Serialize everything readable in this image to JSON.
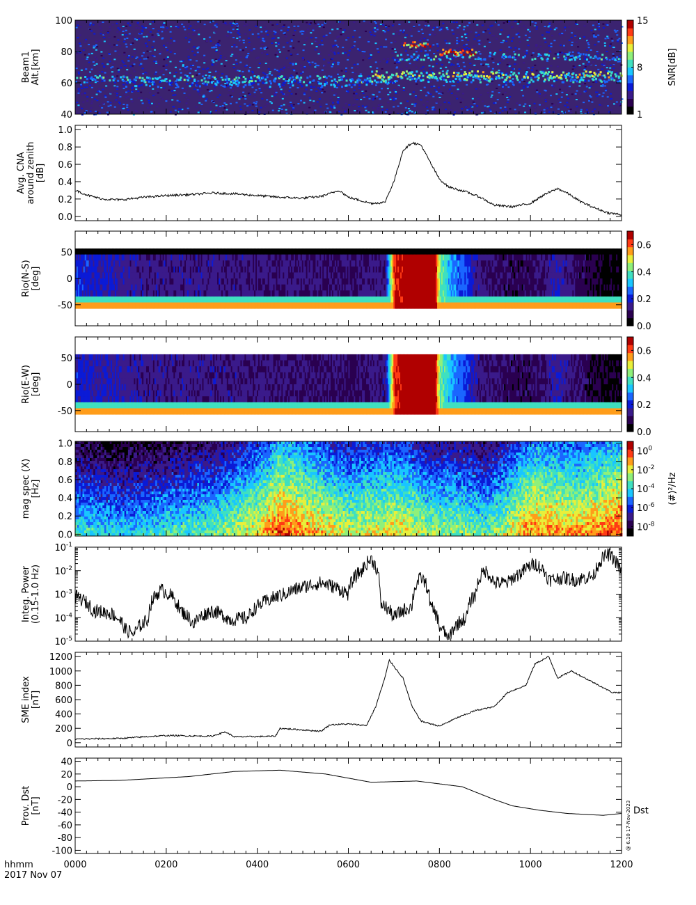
{
  "figure": {
    "footer_unit": "hhmm",
    "footer_date": "2017 Nov 07",
    "version_stamp": "@ 6.10 17-Nov-2023",
    "colormap": [
      "#000000",
      "#2a0050",
      "#3a1a8a",
      "#0b1ad6",
      "#1a66ff",
      "#19c6ff",
      "#3fe0c0",
      "#8ff07a",
      "#e8ef3a",
      "#ff9d1a",
      "#ff3a14",
      "#b00000"
    ]
  },
  "chart_data": [
    {
      "id": "beam1",
      "type": "heatmap",
      "ylabel": [
        "Beam1",
        "Alt.[km]"
      ],
      "ylim": [
        40,
        100
      ],
      "yticks": [
        40,
        60,
        80,
        100
      ],
      "colorbar": {
        "label": "SNR[dB]",
        "range": [
          1,
          15
        ],
        "ticks": [
          "1",
          "8",
          "15"
        ]
      },
      "background": "#3b2370",
      "layers": [
        {
          "alt": 63,
          "t0": 0,
          "t1": 1200,
          "density": 0.55,
          "level": 0.55
        },
        {
          "alt": 60,
          "t0": 100,
          "t1": 700,
          "density": 0.35,
          "level": 0.45
        },
        {
          "alt": 66,
          "t0": 650,
          "t1": 1200,
          "density": 0.6,
          "level": 0.7
        },
        {
          "alt": 77,
          "t0": 700,
          "t1": 1200,
          "density": 0.4,
          "level": 0.55
        },
        {
          "alt": 85,
          "t0": 720,
          "t1": 780,
          "density": 0.7,
          "level": 0.9
        },
        {
          "alt": 80,
          "t0": 800,
          "t1": 880,
          "density": 0.7,
          "level": 0.95
        }
      ]
    },
    {
      "id": "cna",
      "type": "line",
      "ylabel": [
        "Avg. CNA",
        "around zenith",
        "[dB]"
      ],
      "ylim": [
        -0.05,
        1.05
      ],
      "yticks": [
        0.0,
        0.2,
        0.4,
        0.6,
        0.8,
        1.0
      ],
      "series": [
        {
          "points": [
            [
              0,
              0.3
            ],
            [
              30,
              0.24
            ],
            [
              60,
              0.2
            ],
            [
              100,
              0.19
            ],
            [
              150,
              0.22
            ],
            [
              200,
              0.24
            ],
            [
              250,
              0.25
            ],
            [
              300,
              0.27
            ],
            [
              350,
              0.26
            ],
            [
              400,
              0.24
            ],
            [
              450,
              0.22
            ],
            [
              500,
              0.21
            ],
            [
              540,
              0.23
            ],
            [
              580,
              0.3
            ],
            [
              600,
              0.22
            ],
            [
              650,
              0.15
            ],
            [
              680,
              0.16
            ],
            [
              700,
              0.4
            ],
            [
              720,
              0.76
            ],
            [
              740,
              0.85
            ],
            [
              760,
              0.82
            ],
            [
              780,
              0.62
            ],
            [
              800,
              0.43
            ],
            [
              820,
              0.34
            ],
            [
              840,
              0.31
            ],
            [
              860,
              0.28
            ],
            [
              890,
              0.22
            ],
            [
              920,
              0.13
            ],
            [
              960,
              0.11
            ],
            [
              1000,
              0.15
            ],
            [
              1030,
              0.25
            ],
            [
              1060,
              0.32
            ],
            [
              1080,
              0.27
            ],
            [
              1110,
              0.17
            ],
            [
              1140,
              0.1
            ],
            [
              1170,
              0.04
            ],
            [
              1200,
              0.02
            ]
          ]
        }
      ]
    },
    {
      "id": "riometer_ns",
      "type": "heatmap",
      "ylabel": [
        "Rio(N-S)",
        "[deg]"
      ],
      "ylim": [
        -90,
        90
      ],
      "yticks": [
        -50,
        0,
        50
      ],
      "colorbar": {
        "label": "",
        "range": [
          0.0,
          0.7
        ],
        "ticks": [
          "0.0",
          "0.2",
          "0.4",
          "0.6"
        ]
      },
      "profile": [
        [
          0,
          0.3
        ],
        [
          150,
          0.2
        ],
        [
          300,
          0.2
        ],
        [
          450,
          0.18
        ],
        [
          600,
          0.15
        ],
        [
          680,
          0.2
        ],
        [
          700,
          0.9
        ],
        [
          720,
          0.98
        ],
        [
          790,
          0.98
        ],
        [
          800,
          0.6
        ],
        [
          830,
          0.4
        ],
        [
          860,
          0.32
        ],
        [
          880,
          0.2
        ],
        [
          960,
          0.12
        ],
        [
          1020,
          0.15
        ],
        [
          1060,
          0.25
        ],
        [
          1100,
          0.15
        ],
        [
          1160,
          0.05
        ],
        [
          1200,
          0.04
        ]
      ]
    },
    {
      "id": "riometer_ew",
      "type": "heatmap",
      "ylabel": [
        "Rio(E-W)",
        "[deg]"
      ],
      "ylim": [
        -90,
        90
      ],
      "yticks": [
        -50,
        0,
        50
      ],
      "colorbar": {
        "label": "",
        "range": [
          0.0,
          0.7
        ],
        "ticks": [
          "0.0",
          "0.2",
          "0.4",
          "0.6"
        ]
      },
      "profile": [
        [
          0,
          0.28
        ],
        [
          150,
          0.2
        ],
        [
          300,
          0.2
        ],
        [
          450,
          0.18
        ],
        [
          600,
          0.15
        ],
        [
          680,
          0.2
        ],
        [
          700,
          0.9
        ],
        [
          720,
          0.98
        ],
        [
          790,
          0.98
        ],
        [
          800,
          0.6
        ],
        [
          830,
          0.4
        ],
        [
          860,
          0.32
        ],
        [
          880,
          0.2
        ],
        [
          960,
          0.12
        ],
        [
          1020,
          0.15
        ],
        [
          1060,
          0.25
        ],
        [
          1100,
          0.15
        ],
        [
          1160,
          0.08
        ],
        [
          1200,
          0.05
        ]
      ]
    },
    {
      "id": "mag_spec",
      "type": "heatmap",
      "ylabel": [
        "mag spec (X)",
        "[Hz]"
      ],
      "ylim": [
        -0.02,
        1.02
      ],
      "yticks": [
        0.0,
        0.2,
        0.4,
        0.6,
        0.8,
        1.0
      ],
      "colorbar": {
        "label": "(#)²/Hz",
        "range": [
          -9,
          1
        ],
        "ticks": [
          [
            "10",
            "0"
          ],
          [
            "10",
            "-2"
          ],
          [
            "10",
            "-4"
          ],
          [
            "10",
            "-6"
          ],
          [
            "10",
            "-8"
          ]
        ]
      },
      "activity": [
        [
          0,
          0.25
        ],
        [
          100,
          0.2
        ],
        [
          200,
          0.25
        ],
        [
          300,
          0.3
        ],
        [
          400,
          0.45
        ],
        [
          450,
          0.6
        ],
        [
          520,
          0.5
        ],
        [
          600,
          0.4
        ],
        [
          680,
          0.45
        ],
        [
          720,
          0.45
        ],
        [
          780,
          0.35
        ],
        [
          850,
          0.35
        ],
        [
          900,
          0.3
        ],
        [
          950,
          0.4
        ],
        [
          1000,
          0.55
        ],
        [
          1100,
          0.5
        ],
        [
          1200,
          0.6
        ]
      ]
    },
    {
      "id": "integ_power",
      "type": "line",
      "scale": "log",
      "ylabel": [
        "Integ. Power",
        "(0.15-1.0 Hz)"
      ],
      "ylim": [
        1e-05,
        0.1
      ],
      "yticks": [
        [
          "10",
          "-5"
        ],
        [
          "10",
          "-4"
        ],
        [
          "10",
          "-3"
        ],
        [
          "10",
          "-2"
        ],
        [
          "10",
          "-1"
        ]
      ],
      "series": [
        {
          "points": [
            [
              0,
              0.0008
            ],
            [
              40,
              0.0002
            ],
            [
              80,
              0.00015
            ],
            [
              110,
              3e-05
            ],
            [
              130,
              2e-05
            ],
            [
              160,
              8e-05
            ],
            [
              190,
              0.0015
            ],
            [
              230,
              0.0002
            ],
            [
              260,
              5e-05
            ],
            [
              300,
              0.0002
            ],
            [
              340,
              8e-05
            ],
            [
              380,
              0.0001
            ],
            [
              420,
              0.0005
            ],
            [
              460,
              0.001
            ],
            [
              500,
              0.002
            ],
            [
              540,
              0.003
            ],
            [
              600,
              0.001
            ],
            [
              630,
              0.01
            ],
            [
              650,
              0.03
            ],
            [
              670,
              0.0004
            ],
            [
              700,
              0.0001
            ],
            [
              740,
              0.0003
            ],
            [
              760,
              0.005
            ],
            [
              780,
              0.0003
            ],
            [
              800,
              4e-05
            ],
            [
              820,
              1e-05
            ],
            [
              860,
              0.0001
            ],
            [
              880,
              0.001
            ],
            [
              900,
              0.01
            ],
            [
              920,
              0.003
            ],
            [
              950,
              0.003
            ],
            [
              980,
              0.008
            ],
            [
              1010,
              0.02
            ],
            [
              1040,
              0.004
            ],
            [
              1070,
              0.005
            ],
            [
              1100,
              0.004
            ],
            [
              1140,
              0.006
            ],
            [
              1170,
              0.05
            ],
            [
              1200,
              0.006
            ]
          ]
        }
      ]
    },
    {
      "id": "sme",
      "type": "line",
      "ylabel": [
        "SME index",
        "[nT]"
      ],
      "ylim": [
        -60,
        1260
      ],
      "yticks": [
        0,
        200,
        400,
        600,
        800,
        1000,
        1200
      ],
      "series": [
        {
          "points": [
            [
              0,
              50
            ],
            [
              100,
              60
            ],
            [
              150,
              80
            ],
            [
              200,
              100
            ],
            [
              300,
              90
            ],
            [
              330,
              150
            ],
            [
              350,
              80
            ],
            [
              440,
              90
            ],
            [
              450,
              200
            ],
            [
              540,
              160
            ],
            [
              560,
              250
            ],
            [
              600,
              260
            ],
            [
              640,
              240
            ],
            [
              660,
              500
            ],
            [
              680,
              900
            ],
            [
              690,
              1150
            ],
            [
              720,
              900
            ],
            [
              740,
              500
            ],
            [
              760,
              300
            ],
            [
              800,
              230
            ],
            [
              840,
              350
            ],
            [
              880,
              450
            ],
            [
              920,
              500
            ],
            [
              950,
              700
            ],
            [
              990,
              800
            ],
            [
              1010,
              1100
            ],
            [
              1040,
              1200
            ],
            [
              1060,
              900
            ],
            [
              1090,
              1000
            ],
            [
              1120,
              900
            ],
            [
              1150,
              800
            ],
            [
              1180,
              700
            ],
            [
              1200,
              700
            ]
          ]
        }
      ]
    },
    {
      "id": "dst",
      "type": "line",
      "ylabel": [
        "Prov. Dst",
        "[nT]"
      ],
      "ylim": [
        -105,
        45
      ],
      "yticks": [
        -100,
        -80,
        -60,
        -40,
        -20,
        0,
        20,
        40
      ],
      "series": [
        {
          "name": "Dst",
          "points": [
            [
              0,
              9
            ],
            [
              100,
              10
            ],
            [
              250,
              16
            ],
            [
              350,
              24
            ],
            [
              450,
              26
            ],
            [
              550,
              20
            ],
            [
              650,
              7
            ],
            [
              750,
              9
            ],
            [
              850,
              0
            ],
            [
              920,
              -20
            ],
            [
              960,
              -30
            ],
            [
              1020,
              -37
            ],
            [
              1080,
              -42
            ],
            [
              1160,
              -45
            ],
            [
              1200,
              -42
            ]
          ]
        }
      ]
    }
  ],
  "xaxis": {
    "range": [
      0,
      1200
    ],
    "ticks": [
      "0000",
      "0200",
      "0400",
      "0600",
      "0800",
      "1000",
      "1200"
    ]
  }
}
